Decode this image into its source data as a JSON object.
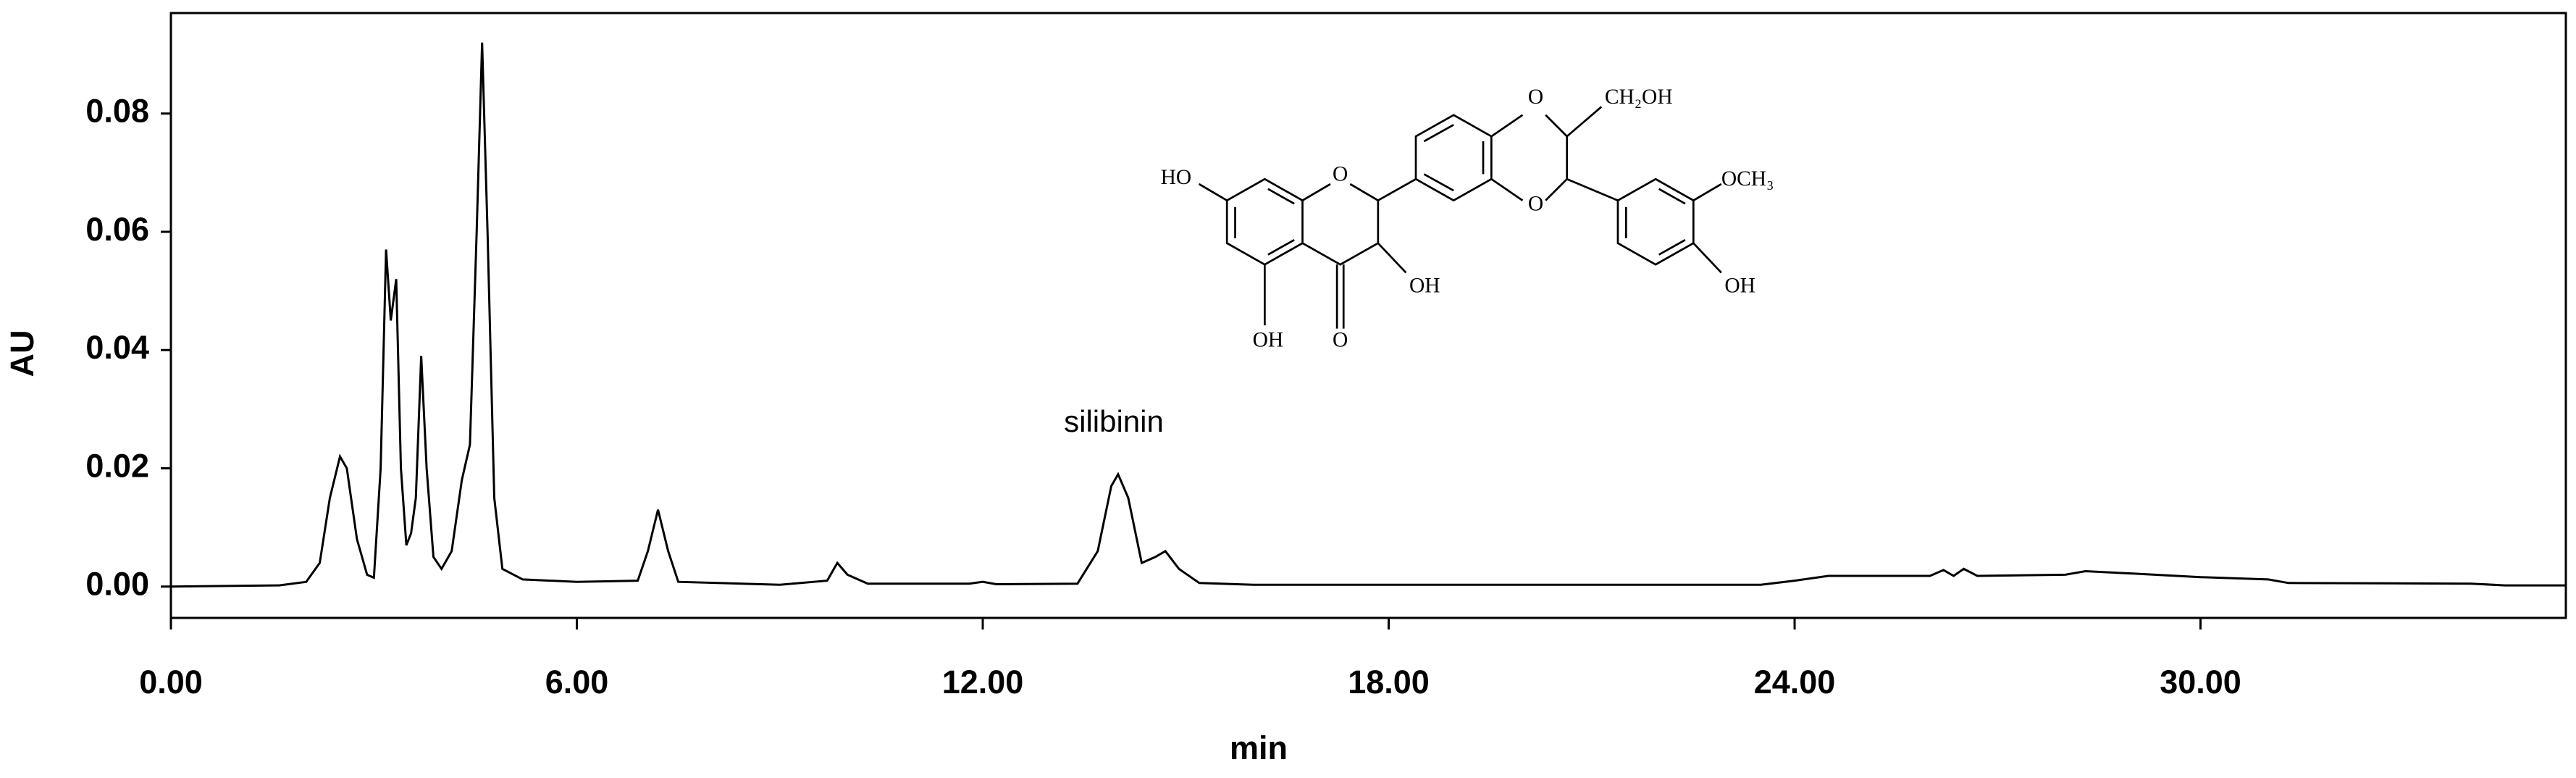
{
  "chart_data": {
    "type": "line",
    "x_label": "min",
    "y_label": "AU",
    "annotation": "silibinin",
    "structure_labels": [
      "HO",
      "O",
      "O",
      "O",
      "CH₂OH",
      "OCH₃",
      "OH",
      "OH",
      "OH",
      "O"
    ],
    "color": "#000000",
    "x": [
      0,
      1.6,
      2.0,
      2.2,
      2.35,
      2.5,
      2.6,
      2.75,
      2.9,
      3.0,
      3.1,
      3.18,
      3.25,
      3.33,
      3.4,
      3.48,
      3.55,
      3.62,
      3.7,
      3.78,
      3.88,
      4.0,
      4.15,
      4.3,
      4.42,
      4.52,
      4.6,
      4.68,
      4.78,
      4.9,
      5.2,
      6.0,
      6.9,
      7.05,
      7.2,
      7.35,
      7.5,
      9.0,
      9.7,
      9.85,
      10.0,
      10.3,
      11.8,
      12.0,
      12.2,
      13.4,
      13.7,
      13.9,
      14.0,
      14.15,
      14.35,
      14.55,
      14.7,
      14.9,
      15.2,
      16,
      23.5,
      24.0,
      24.5,
      26.0,
      26.2,
      26.35,
      26.5,
      26.7,
      28.0,
      28.3,
      29.0,
      30.0,
      31.0,
      31.3,
      34.0,
      34.5,
      35.4
    ],
    "values": [
      0,
      0.0002,
      0.0008,
      0.004,
      0.015,
      0.022,
      0.02,
      0.008,
      0.002,
      0.0015,
      0.02,
      0.057,
      0.045,
      0.052,
      0.02,
      0.007,
      0.009,
      0.015,
      0.039,
      0.02,
      0.005,
      0.003,
      0.006,
      0.018,
      0.024,
      0.06,
      0.092,
      0.06,
      0.015,
      0.003,
      0.0012,
      0.0008,
      0.001,
      0.006,
      0.013,
      0.006,
      0.0008,
      0.0003,
      0.001,
      0.004,
      0.002,
      0.0005,
      0.0005,
      0.0008,
      0.0004,
      0.0005,
      0.006,
      0.017,
      0.019,
      0.015,
      0.004,
      0.005,
      0.006,
      0.003,
      0.0006,
      0.0003,
      0.0003,
      0.001,
      0.0018,
      0.0018,
      0.0028,
      0.0018,
      0.003,
      0.0018,
      0.002,
      0.0026,
      0.0022,
      0.0016,
      0.0012,
      0.0006,
      0.0005,
      0.0002,
      0.0002
    ],
    "xlim": [
      0,
      35.4
    ],
    "ylim": [
      -0.0053,
      0.097
    ],
    "xticks": [
      {
        "value": 0,
        "label": "0.00"
      },
      {
        "value": 6,
        "label": "6.00"
      },
      {
        "value": 12,
        "label": "12.00"
      },
      {
        "value": 18,
        "label": "18.00"
      },
      {
        "value": 24,
        "label": "24.00"
      },
      {
        "value": 30,
        "label": "30.00"
      }
    ],
    "yticks": [
      {
        "value": 0,
        "label": "0.00"
      },
      {
        "value": 0.02,
        "label": "0.02"
      },
      {
        "value": 0.04,
        "label": "0.04"
      },
      {
        "value": 0.06,
        "label": "0.06"
      },
      {
        "value": 0.08,
        "label": "0.08"
      }
    ]
  }
}
